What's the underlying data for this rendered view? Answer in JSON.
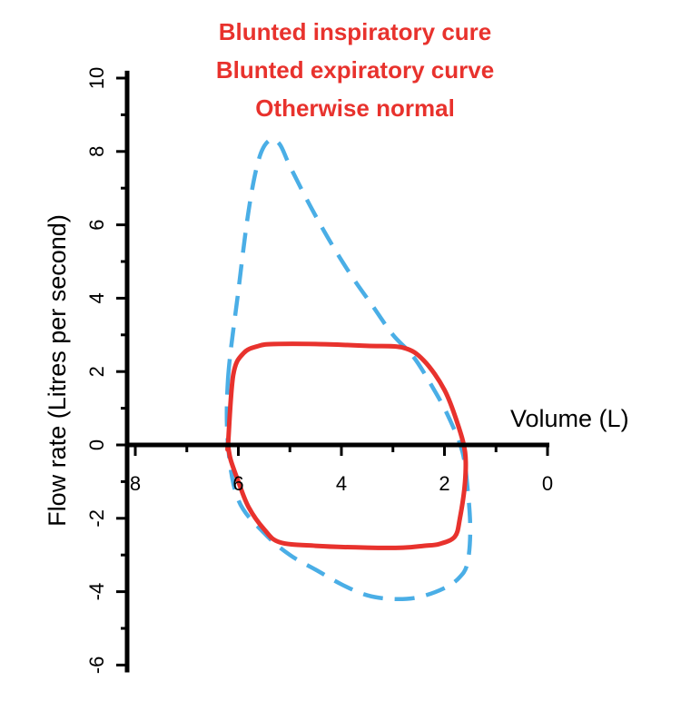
{
  "chart_data": {
    "type": "line",
    "title": "",
    "annotations": [
      "Blunted inspiratory cure",
      "Blunted expiratory curve",
      "Otherwise normal"
    ],
    "annotation_color": "#e8322d",
    "xlabel": "Volume (L)",
    "ylabel": "Flow rate (Litres per second)",
    "x_reversed": true,
    "xlim": [
      8.75,
      0
    ],
    "ylim": [
      -6.2,
      10.2
    ],
    "x_ticks": [
      8,
      6,
      4,
      2,
      0
    ],
    "y_ticks": [
      10,
      8,
      6,
      4,
      2,
      0,
      -2,
      -4,
      -6
    ],
    "grid": false,
    "legend": "none",
    "series": [
      {
        "style": "dashed",
        "color": "#4aaee6",
        "x": [
          6.2,
          6.0,
          5.8,
          5.6,
          5.4,
          5.2,
          5.0,
          4.6,
          4.2,
          3.8,
          3.4,
          3.0,
          2.6,
          2.2,
          1.9,
          1.65,
          1.55,
          1.5,
          1.55,
          1.7,
          2.0,
          2.5,
          3.0,
          3.5,
          4.0,
          4.5,
          5.0,
          5.5,
          6.0,
          6.2
        ],
        "y": [
          1.8,
          4.2,
          6.4,
          7.8,
          8.3,
          8.2,
          7.6,
          6.5,
          5.5,
          4.6,
          3.8,
          3.0,
          2.4,
          1.5,
          0.7,
          -0.2,
          -1.2,
          -2.3,
          -3.2,
          -3.6,
          -3.9,
          -4.15,
          -4.2,
          -4.1,
          -3.8,
          -3.4,
          -3.0,
          -2.4,
          -1.5,
          0
        ]
      },
      {
        "style": "solid",
        "color": "#e8322d",
        "x": [
          6.2,
          6.1,
          5.9,
          5.6,
          5.3,
          4.5,
          3.5,
          2.8,
          2.4,
          2.0,
          1.75,
          1.6,
          1.6,
          1.7,
          1.8,
          2.1,
          2.4,
          2.8,
          3.5,
          4.5,
          5.2,
          5.5,
          5.8,
          6.0,
          6.15,
          6.2
        ],
        "y": [
          0,
          1.9,
          2.5,
          2.7,
          2.75,
          2.75,
          2.7,
          2.65,
          2.3,
          1.5,
          0.6,
          -0.2,
          -1.0,
          -2.0,
          -2.5,
          -2.7,
          -2.75,
          -2.8,
          -2.8,
          -2.75,
          -2.65,
          -2.3,
          -1.7,
          -1.0,
          -0.4,
          0
        ]
      }
    ]
  }
}
